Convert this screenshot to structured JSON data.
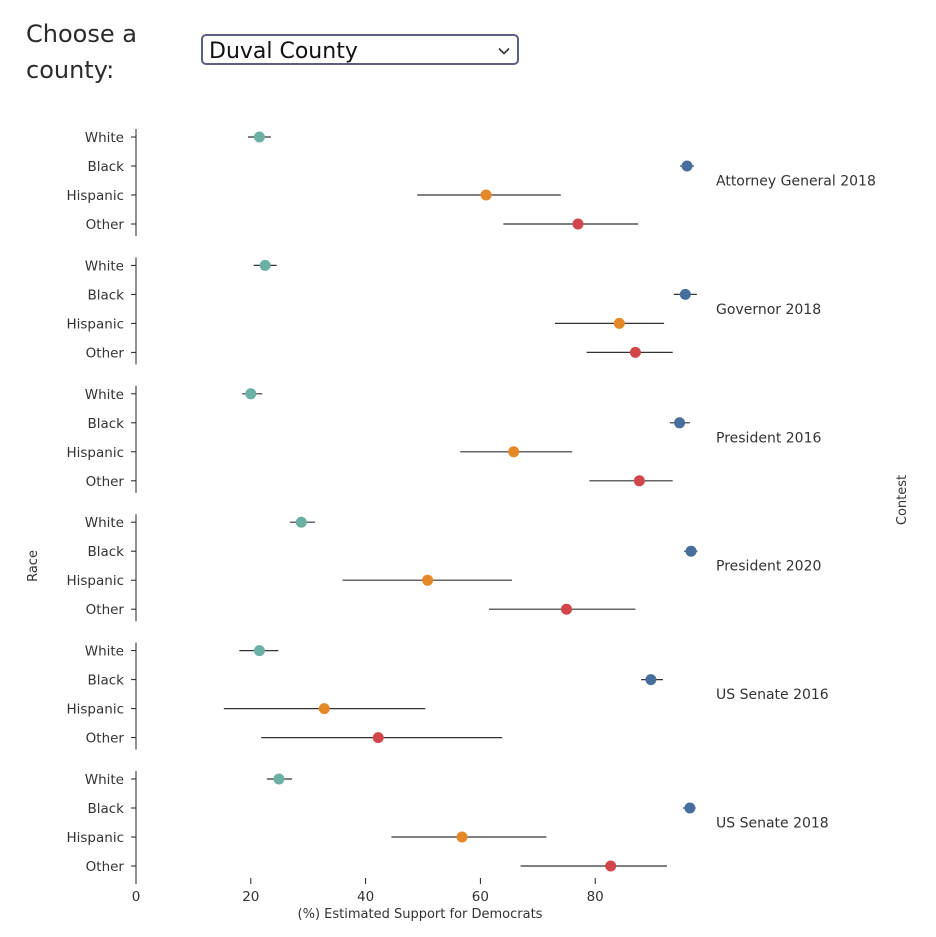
{
  "selector": {
    "label": "Choose a county:",
    "selected": "Duval County",
    "chevron_icon": "chevron-down-icon"
  },
  "chart_data": {
    "type": "scatter",
    "xlabel": "(%) Estimated Support for Democrats",
    "ylabel": "Race",
    "facet_label": "Contest",
    "xlim": [
      0,
      100
    ],
    "xticks": [
      0,
      20,
      40,
      60,
      80
    ],
    "races": [
      "White",
      "Black",
      "Hispanic",
      "Other"
    ],
    "colors": {
      "White": "#6bb0a4",
      "Black": "#466f9d",
      "Hispanic": "#e58828",
      "Other": "#d2464b"
    },
    "panels": [
      {
        "contest": "Attorney General 2018",
        "points": [
          {
            "race": "White",
            "value": 21.5,
            "low": 19.5,
            "high": 23.5
          },
          {
            "race": "Black",
            "value": 96.0,
            "low": 94.8,
            "high": 97.2
          },
          {
            "race": "Hispanic",
            "value": 61.0,
            "low": 49.0,
            "high": 74.0
          },
          {
            "race": "Other",
            "value": 77.0,
            "low": 64.0,
            "high": 87.5
          }
        ]
      },
      {
        "contest": "Governor 2018",
        "points": [
          {
            "race": "White",
            "value": 22.5,
            "low": 20.5,
            "high": 24.5
          },
          {
            "race": "Black",
            "value": 95.7,
            "low": 93.7,
            "high": 97.7
          },
          {
            "race": "Hispanic",
            "value": 84.2,
            "low": 73.0,
            "high": 92.0
          },
          {
            "race": "Other",
            "value": 87.0,
            "low": 78.5,
            "high": 93.5
          }
        ]
      },
      {
        "contest": "President 2016",
        "points": [
          {
            "race": "White",
            "value": 20.0,
            "low": 18.5,
            "high": 22.0
          },
          {
            "race": "Black",
            "value": 94.7,
            "low": 93.0,
            "high": 96.5
          },
          {
            "race": "Hispanic",
            "value": 65.8,
            "low": 56.5,
            "high": 76.0
          },
          {
            "race": "Other",
            "value": 87.7,
            "low": 79.0,
            "high": 93.5
          }
        ]
      },
      {
        "contest": "President 2020",
        "points": [
          {
            "race": "White",
            "value": 28.8,
            "low": 26.8,
            "high": 31.2
          },
          {
            "race": "Black",
            "value": 96.7,
            "low": 95.5,
            "high": 97.8
          },
          {
            "race": "Hispanic",
            "value": 50.8,
            "low": 36.0,
            "high": 65.5
          },
          {
            "race": "Other",
            "value": 75.0,
            "low": 61.5,
            "high": 87.0
          }
        ]
      },
      {
        "contest": "US Senate 2016",
        "points": [
          {
            "race": "White",
            "value": 21.5,
            "low": 18.0,
            "high": 24.8
          },
          {
            "race": "Black",
            "value": 89.7,
            "low": 88.0,
            "high": 91.8
          },
          {
            "race": "Hispanic",
            "value": 32.8,
            "low": 15.3,
            "high": 50.4
          },
          {
            "race": "Other",
            "value": 42.2,
            "low": 21.8,
            "high": 63.8
          }
        ]
      },
      {
        "contest": "US Senate 2018",
        "points": [
          {
            "race": "White",
            "value": 24.9,
            "low": 22.8,
            "high": 27.2
          },
          {
            "race": "Black",
            "value": 96.5,
            "low": 95.3,
            "high": 97.5
          },
          {
            "race": "Hispanic",
            "value": 56.8,
            "low": 44.5,
            "high": 71.5
          },
          {
            "race": "Other",
            "value": 82.7,
            "low": 67.0,
            "high": 92.5
          }
        ]
      }
    ]
  }
}
